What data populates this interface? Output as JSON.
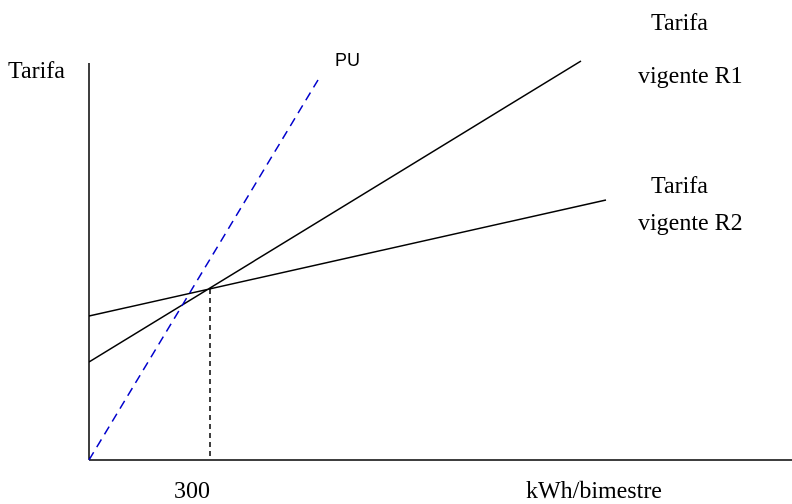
{
  "diagram": {
    "y_axis_label": "Tarifa",
    "x_axis_label": "kWh/bimestre",
    "x_tick_label": "300",
    "pu_label": "PU",
    "r1_label_line1": "Tarifa",
    "r1_label_line2": "vigente R1",
    "r2_label_line1": "Tarifa",
    "r2_label_line2": "vigente R2",
    "colors": {
      "axis": "#000000",
      "tariff_lines": "#000000",
      "pu_line": "#0000cc"
    }
  }
}
